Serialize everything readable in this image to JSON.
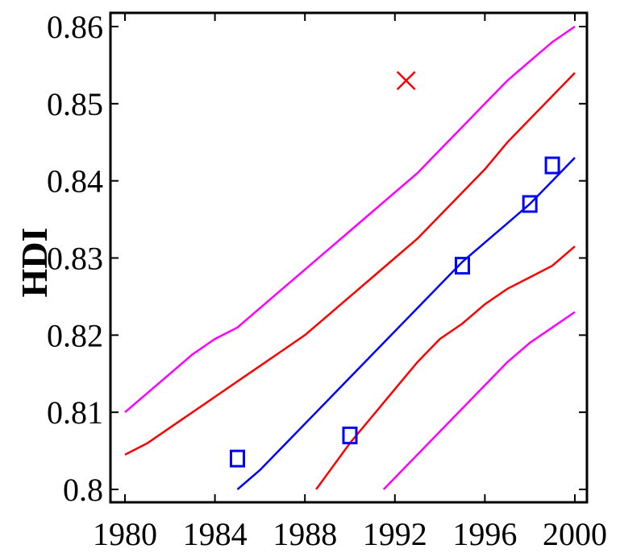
{
  "chart_data": {
    "type": "line",
    "title": "",
    "xlabel": "",
    "ylabel": "HDI",
    "xlim": [
      1980,
      2000
    ],
    "ylim": [
      0.8,
      0.86
    ],
    "grid": false,
    "legend": "none",
    "x_ticks": [
      1980,
      1984,
      1988,
      1992,
      1996,
      2000
    ],
    "x_tick_labels": [
      "1980",
      "1984",
      "1988",
      "1992",
      "1996",
      "2000"
    ],
    "y_ticks": [
      0.8,
      0.81,
      0.82,
      0.83,
      0.84,
      0.85,
      0.86
    ],
    "y_tick_labels": [
      "0.8",
      "0.81",
      "0.82",
      "0.83",
      "0.84",
      "0.85",
      "0.86"
    ],
    "series": [
      {
        "style": "line",
        "color": "#ff00ff",
        "points": [
          [
            1980,
            0.81
          ],
          [
            1981,
            0.8125
          ],
          [
            1982,
            0.815
          ],
          [
            1983,
            0.8175
          ],
          [
            1984,
            0.8195
          ],
          [
            1985,
            0.821
          ],
          [
            1986,
            0.8235
          ],
          [
            1987,
            0.826
          ],
          [
            1988,
            0.8285
          ],
          [
            1989,
            0.831
          ],
          [
            1990,
            0.8335
          ],
          [
            1991,
            0.836
          ],
          [
            1992,
            0.8385
          ],
          [
            1993,
            0.841
          ],
          [
            1994,
            0.844
          ],
          [
            1995,
            0.847
          ],
          [
            1996,
            0.85
          ],
          [
            1997,
            0.853
          ],
          [
            1998,
            0.8555
          ],
          [
            1999,
            0.858
          ],
          [
            2000,
            0.86
          ]
        ]
      },
      {
        "style": "line",
        "color": "#ff0000",
        "points": [
          [
            1980,
            0.8045
          ],
          [
            1981,
            0.806
          ],
          [
            1982,
            0.808
          ],
          [
            1983,
            0.81
          ],
          [
            1984,
            0.812
          ],
          [
            1985,
            0.814
          ],
          [
            1986,
            0.816
          ],
          [
            1987,
            0.818
          ],
          [
            1988,
            0.82
          ],
          [
            1989,
            0.8225
          ],
          [
            1990,
            0.825
          ],
          [
            1991,
            0.8275
          ],
          [
            1992,
            0.83
          ],
          [
            1993,
            0.8325
          ],
          [
            1994,
            0.8355
          ],
          [
            1995,
            0.8385
          ],
          [
            1996,
            0.8415
          ],
          [
            1997,
            0.845
          ],
          [
            1998,
            0.848
          ],
          [
            1999,
            0.851
          ],
          [
            2000,
            0.854
          ]
        ]
      },
      {
        "style": "line",
        "color": "#0000ff",
        "points": [
          [
            1985,
            0.8
          ],
          [
            1986,
            0.8025
          ],
          [
            1987,
            0.8055
          ],
          [
            1988,
            0.8085
          ],
          [
            1989,
            0.8115
          ],
          [
            1990,
            0.8145
          ],
          [
            1991,
            0.8175
          ],
          [
            1992,
            0.8205
          ],
          [
            1993,
            0.8235
          ],
          [
            1994,
            0.8265
          ],
          [
            1995,
            0.8295
          ],
          [
            1996,
            0.832
          ],
          [
            1997,
            0.8345
          ],
          [
            1998,
            0.837
          ],
          [
            1999,
            0.84
          ],
          [
            2000,
            0.843
          ]
        ]
      },
      {
        "style": "line",
        "color": "#ff0000",
        "points": [
          [
            1988.5,
            0.8
          ],
          [
            1989,
            0.802
          ],
          [
            1990,
            0.806
          ],
          [
            1991,
            0.8095
          ],
          [
            1992,
            0.813
          ],
          [
            1993,
            0.8165
          ],
          [
            1994,
            0.8195
          ],
          [
            1995,
            0.8215
          ],
          [
            1996,
            0.824
          ],
          [
            1997,
            0.826
          ],
          [
            1998,
            0.8275
          ],
          [
            1999,
            0.829
          ],
          [
            2000,
            0.8315
          ]
        ]
      },
      {
        "style": "line",
        "color": "#ff00ff",
        "points": [
          [
            1991.5,
            0.8
          ],
          [
            1992,
            0.8015
          ],
          [
            1993,
            0.8045
          ],
          [
            1994,
            0.8075
          ],
          [
            1995,
            0.8105
          ],
          [
            1996,
            0.8135
          ],
          [
            1997,
            0.8165
          ],
          [
            1998,
            0.819
          ],
          [
            1999,
            0.821
          ],
          [
            2000,
            0.823
          ]
        ]
      },
      {
        "style": "square",
        "color": "#0000ff",
        "points": [
          [
            1985,
            0.804
          ],
          [
            1990,
            0.807
          ],
          [
            1995,
            0.829
          ],
          [
            1998,
            0.837
          ],
          [
            1999,
            0.842
          ]
        ]
      },
      {
        "style": "x",
        "color": "#ff0000",
        "points": [
          [
            1992.5,
            0.853
          ]
        ]
      }
    ]
  }
}
